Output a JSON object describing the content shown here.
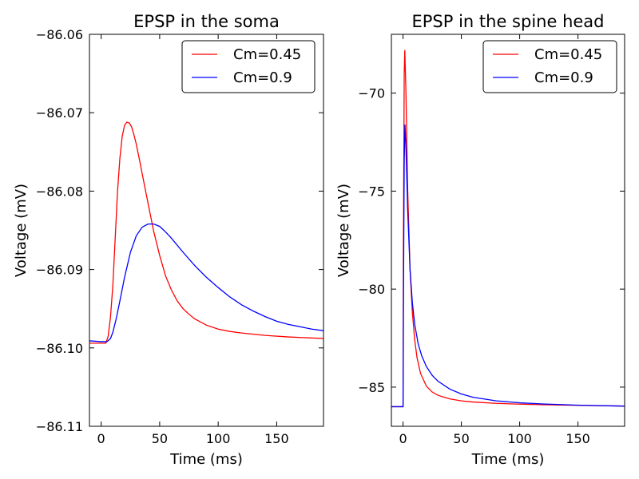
{
  "chart_data": [
    {
      "type": "line",
      "title": "EPSP in the soma",
      "xlabel": "Time (ms)",
      "ylabel": "Voltage (mV)",
      "xlim": [
        -10,
        190
      ],
      "ylim": [
        -86.11,
        -86.06
      ],
      "xticks": [
        0,
        50,
        100,
        150
      ],
      "xtick_labels": [
        "0",
        "50",
        "100",
        "150"
      ],
      "yticks": [
        -86.06,
        -86.07,
        -86.08,
        -86.09,
        -86.1,
        -86.11
      ],
      "ytick_labels": [
        "−86.06",
        "−86.07",
        "−86.08",
        "−86.09",
        "−86.10",
        "−86.11"
      ],
      "grid": false,
      "legend_position": "top-right",
      "series": [
        {
          "name": "Cm=0.45",
          "color": "#ff0000",
          "x": [
            -10,
            0,
            4,
            6,
            8,
            10,
            12,
            14,
            16,
            18,
            20,
            22,
            24,
            26,
            28,
            30,
            33,
            36,
            40,
            45,
            50,
            55,
            60,
            65,
            70,
            75,
            80,
            90,
            100,
            110,
            120,
            140,
            160,
            190
          ],
          "y": [
            -86.0994,
            -86.0994,
            -86.0994,
            -86.0985,
            -86.096,
            -86.092,
            -86.086,
            -86.08,
            -86.0758,
            -86.073,
            -86.0716,
            -86.0712,
            -86.0713,
            -86.0718,
            -86.0728,
            -86.074,
            -86.0762,
            -86.0785,
            -86.0815,
            -86.0852,
            -86.0882,
            -86.0908,
            -86.0926,
            -86.094,
            -86.095,
            -86.0957,
            -86.0963,
            -86.0971,
            -86.0976,
            -86.0979,
            -86.0981,
            -86.0984,
            -86.0986,
            -86.0988
          ]
        },
        {
          "name": "Cm=0.9",
          "color": "#0000ff",
          "x": [
            -10,
            0,
            5,
            8,
            10,
            13,
            16,
            20,
            25,
            30,
            35,
            40,
            45,
            50,
            55,
            60,
            70,
            80,
            90,
            100,
            110,
            120,
            130,
            140,
            150,
            160,
            170,
            180,
            190
          ],
          "y": [
            -86.0991,
            -86.0992,
            -86.0992,
            -86.0988,
            -86.098,
            -86.0962,
            -86.094,
            -86.091,
            -86.0878,
            -86.0857,
            -86.0846,
            -86.0842,
            -86.0842,
            -86.0845,
            -86.0852,
            -86.086,
            -86.0878,
            -86.0895,
            -86.091,
            -86.0923,
            -86.0935,
            -86.0945,
            -86.0953,
            -86.096,
            -86.0966,
            -86.097,
            -86.0973,
            -86.0976,
            -86.0978
          ]
        }
      ]
    },
    {
      "type": "line",
      "title": "EPSP in the spine head",
      "xlabel": "Time (ms)",
      "ylabel": "Voltage (mV)",
      "xlim": [
        -10,
        190
      ],
      "ylim": [
        -87,
        -67
      ],
      "xticks": [
        0,
        50,
        100,
        150
      ],
      "xtick_labels": [
        "0",
        "50",
        "100",
        "150"
      ],
      "yticks": [
        -70,
        -75,
        -80,
        -85
      ],
      "ytick_labels": [
        "−70",
        "−75",
        "−80",
        "−85"
      ],
      "grid": false,
      "legend_position": "top-right",
      "series": [
        {
          "name": "Cm=0.45",
          "color": "#ff0000",
          "x": [
            -10,
            0,
            0.3,
            1.0,
            1.5,
            2.5,
            4,
            6,
            8,
            10,
            12,
            15,
            20,
            25,
            30,
            40,
            50,
            60,
            80,
            100,
            120,
            150,
            190
          ],
          "y": [
            -86.0,
            -86.0,
            -78.0,
            -69.0,
            -67.8,
            -70.0,
            -75.0,
            -79.0,
            -81.2,
            -82.6,
            -83.5,
            -84.3,
            -84.95,
            -85.25,
            -85.42,
            -85.6,
            -85.7,
            -85.76,
            -85.83,
            -85.87,
            -85.9,
            -85.93,
            -85.97
          ]
        },
        {
          "name": "Cm=0.9",
          "color": "#0000ff",
          "x": [
            -10,
            0,
            0.4,
            1.0,
            1.6,
            2.5,
            4,
            6,
            8,
            10,
            13,
            16,
            20,
            25,
            30,
            40,
            50,
            60,
            80,
            100,
            120,
            150,
            190
          ],
          "y": [
            -86.0,
            -86.0,
            -80.0,
            -73.5,
            -71.6,
            -72.8,
            -76.0,
            -79.0,
            -80.7,
            -81.8,
            -82.8,
            -83.4,
            -83.95,
            -84.4,
            -84.7,
            -85.1,
            -85.35,
            -85.52,
            -85.7,
            -85.8,
            -85.86,
            -85.92,
            -85.97
          ]
        }
      ]
    }
  ]
}
